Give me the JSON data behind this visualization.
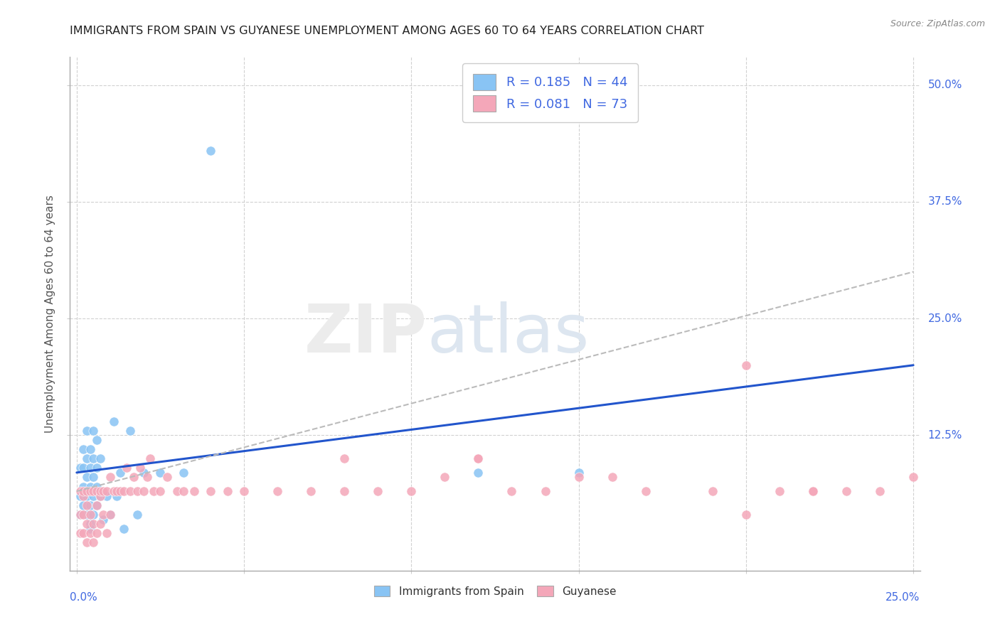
{
  "title": "IMMIGRANTS FROM SPAIN VS GUYANESE UNEMPLOYMENT AMONG AGES 60 TO 64 YEARS CORRELATION CHART",
  "source": "Source: ZipAtlas.com",
  "ylabel": "Unemployment Among Ages 60 to 64 years",
  "legend1_label": "R = 0.185   N = 44",
  "legend2_label": "R = 0.081   N = 73",
  "legend_xlabel1": "Immigrants from Spain",
  "legend_xlabel2": "Guyanese",
  "color_spain": "#89c4f4",
  "color_guyanese": "#f4a7b9",
  "trendline_spain_color": "#2255cc",
  "trendline_guyanese_color": "#bbbbbb",
  "background_color": "#ffffff",
  "xlim": [
    -0.002,
    0.252
  ],
  "ylim": [
    -0.02,
    0.53
  ],
  "ytick_vals": [
    0.125,
    0.25,
    0.375,
    0.5
  ],
  "ytick_labels": [
    "12.5%",
    "25.0%",
    "37.5%",
    "50.0%"
  ],
  "xtick_left_label": "0.0%",
  "xtick_right_label": "25.0%",
  "spain_trend_x0": 0.0,
  "spain_trend_y0": 0.085,
  "spain_trend_x1": 0.25,
  "spain_trend_y1": 0.2,
  "guy_trend_x0": 0.0,
  "guy_trend_y0": 0.065,
  "guy_trend_x1": 0.25,
  "guy_trend_y1": 0.3,
  "spain_x": [
    0.001,
    0.001,
    0.001,
    0.002,
    0.002,
    0.002,
    0.002,
    0.003,
    0.003,
    0.003,
    0.003,
    0.003,
    0.004,
    0.004,
    0.004,
    0.004,
    0.004,
    0.004,
    0.005,
    0.005,
    0.005,
    0.005,
    0.005,
    0.006,
    0.006,
    0.006,
    0.006,
    0.007,
    0.007,
    0.008,
    0.009,
    0.01,
    0.011,
    0.012,
    0.013,
    0.014,
    0.016,
    0.018,
    0.02,
    0.025,
    0.032,
    0.04,
    0.12,
    0.15
  ],
  "spain_y": [
    0.04,
    0.06,
    0.09,
    0.05,
    0.07,
    0.09,
    0.11,
    0.04,
    0.06,
    0.08,
    0.1,
    0.13,
    0.03,
    0.05,
    0.07,
    0.09,
    0.11,
    0.025,
    0.04,
    0.06,
    0.08,
    0.1,
    0.13,
    0.05,
    0.07,
    0.09,
    0.12,
    0.06,
    0.1,
    0.035,
    0.06,
    0.04,
    0.14,
    0.06,
    0.085,
    0.025,
    0.13,
    0.04,
    0.085,
    0.085,
    0.085,
    0.43,
    0.085,
    0.085
  ],
  "guyanese_x": [
    0.001,
    0.001,
    0.001,
    0.002,
    0.002,
    0.002,
    0.002,
    0.003,
    0.003,
    0.003,
    0.003,
    0.004,
    0.004,
    0.004,
    0.005,
    0.005,
    0.005,
    0.006,
    0.006,
    0.006,
    0.007,
    0.007,
    0.007,
    0.008,
    0.008,
    0.009,
    0.009,
    0.01,
    0.01,
    0.011,
    0.012,
    0.013,
    0.014,
    0.015,
    0.016,
    0.017,
    0.018,
    0.019,
    0.02,
    0.021,
    0.022,
    0.023,
    0.025,
    0.027,
    0.03,
    0.032,
    0.035,
    0.04,
    0.045,
    0.05,
    0.06,
    0.07,
    0.08,
    0.09,
    0.1,
    0.11,
    0.12,
    0.13,
    0.14,
    0.15,
    0.17,
    0.19,
    0.2,
    0.21,
    0.22,
    0.23,
    0.24,
    0.25,
    0.2,
    0.12,
    0.08,
    0.16,
    0.22
  ],
  "guyanese_y": [
    0.02,
    0.04,
    0.065,
    0.02,
    0.04,
    0.06,
    0.065,
    0.01,
    0.03,
    0.05,
    0.065,
    0.02,
    0.04,
    0.065,
    0.01,
    0.03,
    0.065,
    0.02,
    0.05,
    0.065,
    0.03,
    0.06,
    0.065,
    0.04,
    0.065,
    0.02,
    0.065,
    0.04,
    0.08,
    0.065,
    0.065,
    0.065,
    0.065,
    0.09,
    0.065,
    0.08,
    0.065,
    0.09,
    0.065,
    0.08,
    0.1,
    0.065,
    0.065,
    0.08,
    0.065,
    0.065,
    0.065,
    0.065,
    0.065,
    0.065,
    0.065,
    0.065,
    0.1,
    0.065,
    0.065,
    0.08,
    0.1,
    0.065,
    0.065,
    0.08,
    0.065,
    0.065,
    0.04,
    0.065,
    0.065,
    0.065,
    0.065,
    0.08,
    0.2,
    0.1,
    0.065,
    0.08,
    0.065
  ]
}
